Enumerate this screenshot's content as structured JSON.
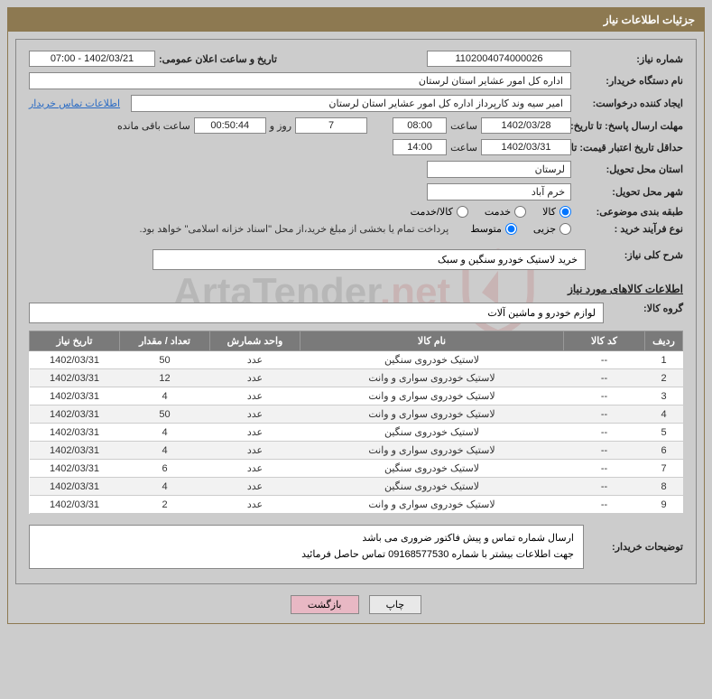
{
  "panel_title": "جزئیات اطلاعات نیاز",
  "fields": {
    "need_no_label": "شماره نیاز:",
    "need_no": "1102004074000026",
    "announce_label": "تاریخ و ساعت اعلان عمومی:",
    "announce_value": "1402/03/21 - 07:00",
    "buyer_org_label": "نام دستگاه خریدار:",
    "buyer_org": "اداره کل امور عشایر استان لرستان",
    "requester_label": "ایجاد کننده درخواست:",
    "requester": "امیر سیه وند کارپرداز اداره کل امور عشایر استان لرستان",
    "contact_link": "اطلاعات تماس خریدار",
    "deadline_label": "مهلت ارسال پاسخ: تا تاریخ:",
    "deadline_date": "1402/03/28",
    "time_label": "ساعت",
    "deadline_time": "08:00",
    "days_remain": "7",
    "days_text": "روز و",
    "countdown": "00:50:44",
    "remain_text": "ساعت باقی مانده",
    "validity_label": "حداقل تاریخ اعتبار قیمت: تا تاریخ:",
    "validity_date": "1402/03/31",
    "validity_time": "14:00",
    "delivery_province_label": "استان محل تحویل:",
    "delivery_province": "لرستان",
    "delivery_city_label": "شهر محل تحویل:",
    "delivery_city": "خرم آباد",
    "category_label": "طبقه بندی موضوعی:",
    "cat_goods": "کالا",
    "cat_service": "خدمت",
    "cat_both": "کالا/خدمت",
    "purchase_type_label": "نوع فرآیند خرید :",
    "pt_small": "جزیی",
    "pt_medium": "متوسط",
    "payment_note": "پرداخت تمام یا بخشی از مبلغ خرید،از محل \"اسناد خزانه اسلامی\" خواهد بود.",
    "general_desc_label": "شرح کلی نیاز:",
    "general_desc": "خرید لاستیک خودرو سنگین و سبک",
    "goods_section_title": "اطلاعات کالاهای مورد نیاز",
    "goods_group_label": "گروه کالا:",
    "goods_group": "لوازم خودرو و ماشین آلات",
    "buyer_note_label": "توضیحات خریدار:",
    "buyer_note_line1": "ارسال شماره تماس و پیش فاکتور ضروری می باشد",
    "buyer_note_line2": "جهت اطلاعات بیشتر با شماره 09168577530 تماس حاصل فرمائید"
  },
  "table": {
    "headers": {
      "row": "ردیف",
      "code": "کد کالا",
      "name": "نام کالا",
      "unit": "واحد شمارش",
      "qty": "تعداد / مقدار",
      "need_date": "تاریخ نیاز"
    },
    "rows": [
      {
        "n": "1",
        "code": "--",
        "name": "لاستیک خودروی سنگین",
        "unit": "عدد",
        "qty": "50",
        "date": "1402/03/31"
      },
      {
        "n": "2",
        "code": "--",
        "name": "لاستیک خودروی سواری و وانت",
        "unit": "عدد",
        "qty": "12",
        "date": "1402/03/31"
      },
      {
        "n": "3",
        "code": "--",
        "name": "لاستیک خودروی سواری و وانت",
        "unit": "عدد",
        "qty": "4",
        "date": "1402/03/31"
      },
      {
        "n": "4",
        "code": "--",
        "name": "لاستیک خودروی سواری و وانت",
        "unit": "عدد",
        "qty": "50",
        "date": "1402/03/31"
      },
      {
        "n": "5",
        "code": "--",
        "name": "لاستیک خودروی سنگین",
        "unit": "عدد",
        "qty": "4",
        "date": "1402/03/31"
      },
      {
        "n": "6",
        "code": "--",
        "name": "لاستیک خودروی سواری و وانت",
        "unit": "عدد",
        "qty": "4",
        "date": "1402/03/31"
      },
      {
        "n": "7",
        "code": "--",
        "name": "لاستیک خودروی سنگین",
        "unit": "عدد",
        "qty": "6",
        "date": "1402/03/31"
      },
      {
        "n": "8",
        "code": "--",
        "name": "لاستیک خودروی سنگین",
        "unit": "عدد",
        "qty": "4",
        "date": "1402/03/31"
      },
      {
        "n": "9",
        "code": "--",
        "name": "لاستیک خودروی سواری و وانت",
        "unit": "عدد",
        "qty": "2",
        "date": "1402/03/31"
      }
    ]
  },
  "buttons": {
    "print": "چاپ",
    "back": "بازگشت"
  },
  "watermark": {
    "text_main": "ArtaTender",
    "text_suffix": ".net",
    "shield_stroke": "#b23030",
    "shield_inner": "#ffffff"
  },
  "colors": {
    "header_bg": "#8d7951",
    "page_bg": "#cccccc",
    "th_bg": "#7a7a7a",
    "btn_pink": "#e8b8c4",
    "link": "#2a6bc4"
  }
}
